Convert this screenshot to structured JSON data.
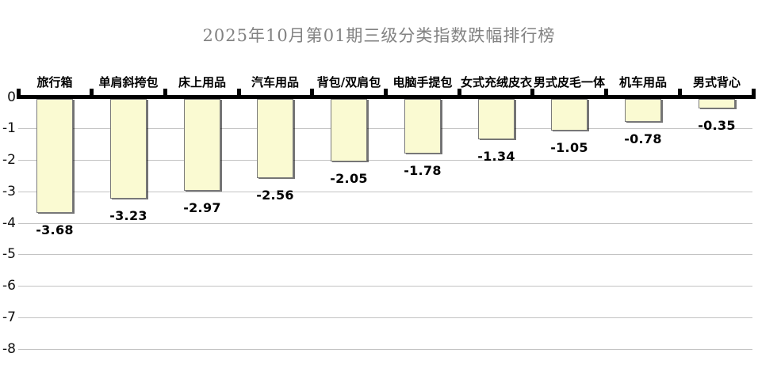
{
  "chart_data": {
    "type": "bar",
    "title": "2025年10月第01期三级分类指数跌幅排行榜",
    "categories": [
      "旅行箱",
      "单肩斜挎包",
      "床上用品",
      "汽车用品",
      "背包/双肩包",
      "电脑手提包",
      "女式充绒皮衣",
      "男式皮毛一体",
      "机车用品",
      "男式背心"
    ],
    "values": [
      -3.68,
      -3.23,
      -2.97,
      -2.56,
      -2.05,
      -1.78,
      -1.34,
      -1.05,
      -0.78,
      -0.35
    ],
    "xlabel": "",
    "ylabel": "",
    "ylim": [
      0,
      -8
    ],
    "yticks": [
      0,
      -1,
      -2,
      -3,
      -4,
      -5,
      -6,
      -7,
      -8
    ],
    "grid": true,
    "legend_position": "none",
    "bar_orientation": "vertical-negative",
    "colors": {
      "bar_fill": "#FAFAD2",
      "bar_border": "#7a7a7a",
      "bar_shadow": "#1a1a1a",
      "axis": "#000000",
      "gridline": "#c3c3c3",
      "title_text": "#828282",
      "label_text": "#000000"
    }
  }
}
